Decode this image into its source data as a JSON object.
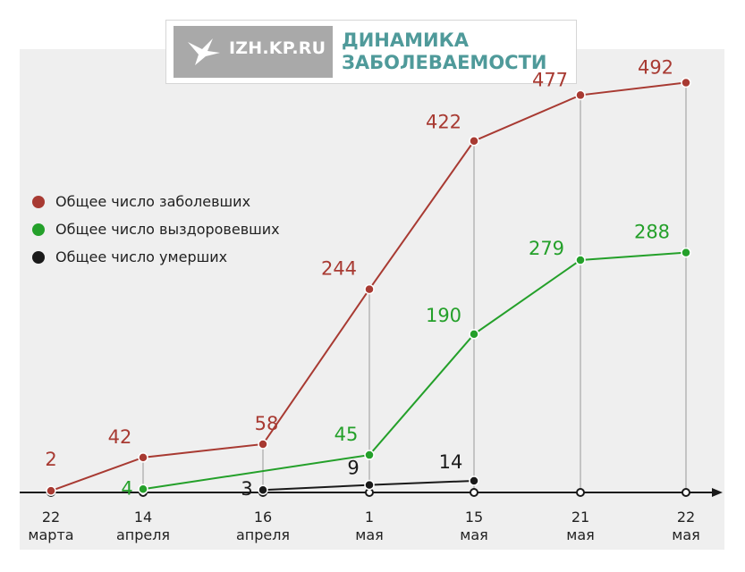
{
  "header": {
    "logo_text": "IZH.KP.RU",
    "title_line1": "ДИНАМИКА",
    "title_line2": "ЗАБОЛЕВАЕМОСТИ"
  },
  "colors": {
    "infected": "#a83a32",
    "recovered": "#24a02a",
    "deaths": "#1a1a1a",
    "title": "#4f9a9a",
    "panel": "#efefef"
  },
  "icons": {
    "logo": "bird-icon"
  },
  "chart_data": {
    "type": "line",
    "categories": [
      [
        "22",
        "марта"
      ],
      [
        "14",
        "апреля"
      ],
      [
        "16",
        "апреля"
      ],
      [
        "1",
        "мая"
      ],
      [
        "15",
        "мая"
      ],
      [
        "21",
        "мая"
      ],
      [
        "22",
        "мая"
      ]
    ],
    "series": [
      {
        "name": "Общее число заболевших",
        "color": "#a83a32",
        "values": [
          2,
          42,
          58,
          244,
          422,
          477,
          492
        ]
      },
      {
        "name": "Общее число выздоровевших",
        "color": "#24a02a",
        "values": [
          null,
          4,
          null,
          45,
          190,
          279,
          288
        ]
      },
      {
        "name": "Общее число умерших",
        "color": "#1a1a1a",
        "values": [
          null,
          null,
          3,
          9,
          14,
          null,
          null
        ]
      }
    ],
    "legend_position": "left",
    "grid": false
  }
}
